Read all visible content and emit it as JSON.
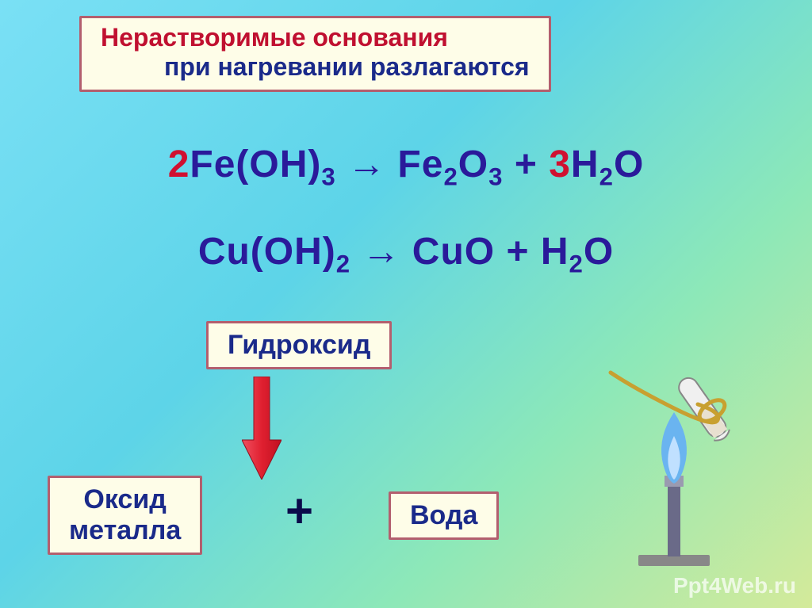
{
  "colors": {
    "title_red": "#c01030",
    "title_blue": "#1a2a8a",
    "eq_coeff_red": "#d01030",
    "eq_blue": "#2a1a9a",
    "label_blue": "#1a2a8a",
    "plus_dark": "#0a0a4a",
    "box_bg": "#fefde8",
    "box_border": "#b35f6e",
    "arrow_red": "#e02030"
  },
  "fonts": {
    "title_size": 32,
    "eq_size": 48,
    "label_size": 34,
    "plus_size": 60,
    "weight": "bold"
  },
  "title": {
    "line1": "Нерастворимые основания",
    "line2": "при нагревании разлагаются"
  },
  "equations": {
    "eq1_parts": [
      "2",
      "Fe(OH)",
      "3",
      " → Fe",
      "2",
      "O",
      "3",
      " + ",
      "3",
      "H",
      "2",
      "O"
    ],
    "eq2_parts": [
      "Cu(OH)",
      "2",
      " → CuO + H",
      "2",
      "O"
    ]
  },
  "labels": {
    "hydroxide": "Гидроксид",
    "oxide_line1": "Оксид",
    "oxide_line2": "металла",
    "water": "Вода",
    "plus": "+"
  },
  "apparatus": {
    "burner_body": "#6a6a88",
    "burner_base": "#888888",
    "flame_outer": "#6ab4f0",
    "flame_inner": "#c0e0ff",
    "holder": "#c8a030",
    "tube_fill": "#e8e0d0",
    "tube_outline": "#888888"
  },
  "watermark": "Ppt4Web.ru"
}
